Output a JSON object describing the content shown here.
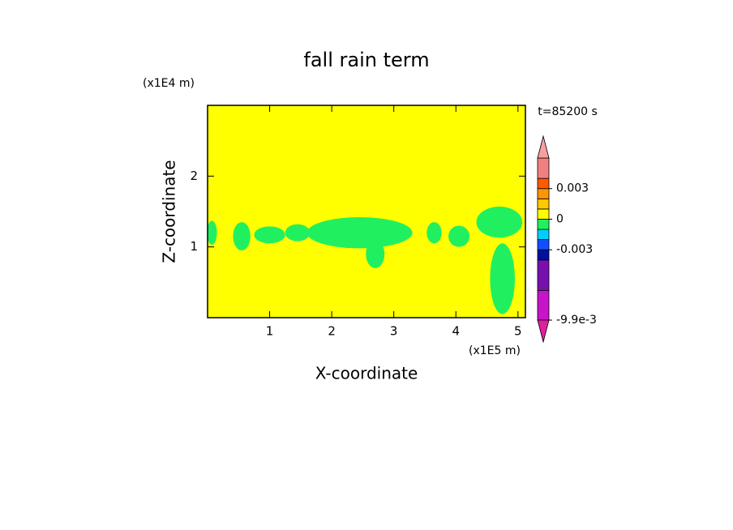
{
  "chart_data": {
    "type": "contour",
    "title": "fall rain term",
    "xlabel": "X-coordinate",
    "ylabel": "Z-coordinate",
    "x_unit_label": "(x1E5 m)",
    "y_unit_label": "(x1E4 m)",
    "time_label": "t=85200 s",
    "xlim": [
      0,
      5.12
    ],
    "ylim": [
      0,
      3
    ],
    "xticks": [
      1,
      2,
      3,
      4,
      5
    ],
    "yticks": [
      1,
      2
    ],
    "field": {
      "background": 0.0005,
      "patches": [
        {
          "x": 0.07,
          "z": 1.2,
          "rx": 0.08,
          "rz": 0.17,
          "value": -0.0005
        },
        {
          "x": 0.55,
          "z": 1.15,
          "rx": 0.14,
          "rz": 0.2,
          "value": -0.0005
        },
        {
          "x": 1.0,
          "z": 1.17,
          "rx": 0.25,
          "rz": 0.12,
          "value": -0.0005
        },
        {
          "x": 1.45,
          "z": 1.2,
          "rx": 0.2,
          "rz": 0.12,
          "value": -0.0005
        },
        {
          "x": 2.45,
          "z": 1.2,
          "rx": 0.85,
          "rz": 0.22,
          "value": -0.0005
        },
        {
          "x": 2.7,
          "z": 0.9,
          "rx": 0.15,
          "rz": 0.2,
          "value": -0.0005
        },
        {
          "x": 3.65,
          "z": 1.2,
          "rx": 0.12,
          "rz": 0.15,
          "value": -0.0005
        },
        {
          "x": 4.05,
          "z": 1.15,
          "rx": 0.17,
          "rz": 0.15,
          "value": -0.0005
        },
        {
          "x": 4.7,
          "z": 1.35,
          "rx": 0.37,
          "rz": 0.22,
          "value": -0.0005
        },
        {
          "x": 4.75,
          "z": 0.55,
          "rx": 0.2,
          "rz": 0.5,
          "value": -0.0005
        }
      ]
    },
    "colorbar": {
      "bounds": [
        -0.0099,
        -0.007,
        -0.004,
        -0.003,
        -0.002,
        -0.001,
        0,
        0.001,
        0.002,
        0.003,
        0.004,
        0.006
      ],
      "colors": [
        "#c814c8",
        "#7810b0",
        "#0010a0",
        "#1050ff",
        "#00d0ff",
        "#20f060",
        "#ffff00",
        "#ffc800",
        "#ff9600",
        "#ff5a00",
        "#f08080"
      ],
      "under_color": "#e020a0",
      "over_color": "#f8a0a0",
      "ticks": [
        0.003,
        0,
        -0.003,
        {
          "value": -0.0099,
          "label": "-9.9e-3"
        }
      ]
    }
  }
}
